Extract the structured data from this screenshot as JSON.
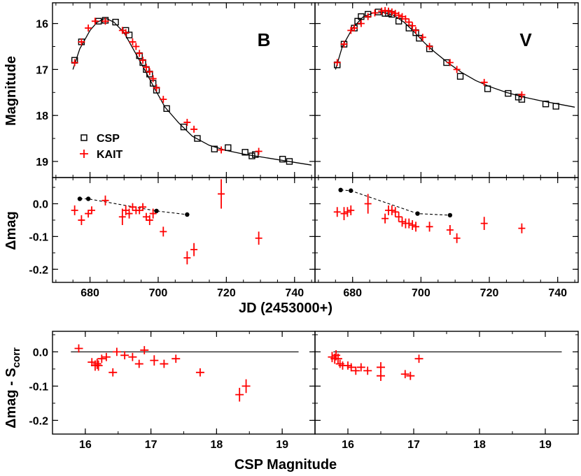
{
  "chart_data": {
    "type": "scatter",
    "title": "",
    "shared_x": {
      "label": "JD (2453000+)",
      "lim": [
        669,
        746
      ],
      "ticks": [
        680,
        700,
        720,
        740
      ],
      "tick_labels": [
        "680",
        "700",
        "720",
        "740"
      ]
    },
    "bottom_x": {
      "label": "CSP Magnitude",
      "lim": [
        15.5,
        19.5
      ],
      "ticks": [
        16,
        17,
        18,
        19
      ],
      "tick_labels": [
        "16",
        "17",
        "18",
        "19"
      ]
    },
    "ylabels": {
      "top": "Magnitude",
      "middle": "Δmag",
      "bottom_main": "Δmag - S",
      "bottom_sub": "corr"
    },
    "ylims": {
      "top": [
        19.35,
        15.55
      ],
      "middle": [
        -0.24,
        0.08
      ],
      "bottom": [
        -0.24,
        0.06
      ]
    },
    "yticks": {
      "top": [
        16,
        17,
        18,
        19
      ],
      "top_labels": [
        "16",
        "17",
        "18",
        "19"
      ],
      "middle": [
        0.0,
        -0.1,
        -0.2
      ],
      "middle_labels": [
        "0.0",
        "-0.1",
        "-0.2"
      ],
      "bottom": [
        0.0,
        -0.1,
        -0.2
      ],
      "bottom_labels": [
        "0.0",
        "-0.1",
        "-0.2"
      ]
    },
    "legend": {
      "placement": "lower-left of B light-curve panel",
      "items": [
        {
          "label": "CSP",
          "marker": "open-square",
          "color": "#000000"
        },
        {
          "label": "KAIT",
          "marker": "plus",
          "color": "#ff0000"
        }
      ]
    },
    "colors": {
      "csp": "#000000",
      "kait": "#ff0000",
      "fit": "#000000"
    },
    "bands": [
      {
        "name": "B",
        "csp": {
          "x": [
            675.5,
            677.5,
            682.5,
            684.5,
            687.5,
            690.5,
            691.5,
            694.5,
            695.5,
            696.5,
            697.5,
            698.5,
            699.5,
            702.5,
            707.5,
            711.5,
            716.5,
            720.5,
            725.5,
            727.5,
            728.5,
            736.5,
            738.5
          ],
          "y": [
            16.8,
            16.4,
            15.95,
            15.93,
            15.97,
            16.15,
            16.25,
            16.7,
            16.85,
            17.0,
            17.1,
            17.3,
            17.45,
            17.85,
            18.25,
            18.5,
            18.73,
            18.7,
            18.8,
            18.88,
            18.85,
            18.95,
            19.0
          ]
        },
        "kait": {
          "x": [
            675.5,
            677.5,
            679.5,
            681.5,
            684.5,
            689.5,
            690.5,
            692.5,
            693.5,
            694.5,
            695.5,
            696.5,
            697.5,
            698.5,
            699.5,
            701.5,
            708.5,
            710.5,
            718.5,
            729.5
          ],
          "y": [
            16.85,
            16.4,
            16.1,
            15.95,
            15.95,
            16.15,
            16.2,
            16.4,
            16.5,
            16.65,
            16.8,
            16.95,
            17.05,
            17.2,
            17.4,
            17.65,
            18.15,
            18.3,
            18.75,
            18.78
          ]
        },
        "fit": {
          "x": [
            675,
            677,
            680,
            682,
            684,
            685,
            687,
            690,
            693,
            696,
            699,
            702,
            706,
            710,
            715,
            720,
            725,
            730,
            735,
            740,
            745
          ],
          "y": [
            17.0,
            16.55,
            16.15,
            15.98,
            15.9,
            15.9,
            15.97,
            16.2,
            16.6,
            17.0,
            17.42,
            17.82,
            18.16,
            18.45,
            18.65,
            18.76,
            18.84,
            18.9,
            18.96,
            19.02,
            19.08
          ]
        },
        "dmag": {
          "csp": {
            "x": [
              677.0,
              679.5,
              699.5,
              708.5
            ],
            "y": [
              0.015,
              0.015,
              -0.022,
              -0.033
            ]
          },
          "kait": {
            "x": [
              675.5,
              677.5,
              679.5,
              680.5,
              684.5,
              689.5,
              690.5,
              691.5,
              692.5,
              693.5,
              694.5,
              695.5,
              696.5,
              697.5,
              698.5,
              701.5,
              708.5,
              710.5,
              718.5,
              729.5
            ],
            "y": [
              -0.02,
              -0.05,
              -0.03,
              -0.02,
              0.01,
              -0.04,
              -0.02,
              -0.03,
              -0.01,
              -0.02,
              -0.02,
              -0.01,
              -0.04,
              -0.05,
              -0.03,
              -0.085,
              -0.165,
              -0.14,
              0.03,
              -0.105
            ],
            "yerr": [
              0.015,
              0.015,
              0.012,
              0.012,
              0.015,
              0.025,
              0.015,
              0.015,
              0.012,
              0.012,
              0.012,
              0.012,
              0.012,
              0.015,
              0.015,
              0.015,
              0.02,
              0.02,
              0.045,
              0.02
            ]
          }
        },
        "residual": {
          "x": [
            15.9,
            16.1,
            16.15,
            16.18,
            16.2,
            16.25,
            16.32,
            16.42,
            16.48,
            16.6,
            16.72,
            16.82,
            16.9,
            17.05,
            17.2,
            17.38,
            17.75,
            18.35,
            18.45
          ],
          "y": [
            0.01,
            -0.03,
            -0.04,
            -0.035,
            -0.04,
            -0.02,
            -0.015,
            -0.06,
            0.0,
            -0.01,
            -0.015,
            -0.035,
            0.005,
            -0.025,
            -0.035,
            -0.02,
            -0.06,
            -0.125,
            -0.1
          ],
          "yerr": [
            0.012,
            0.012,
            0.015,
            0.015,
            0.015,
            0.012,
            0.012,
            0.012,
            0.012,
            0.012,
            0.012,
            0.012,
            0.012,
            0.015,
            0.012,
            0.012,
            0.012,
            0.02,
            0.02
          ]
        }
      },
      {
        "name": "V",
        "csp": {
          "x": [
            675.5,
            677.5,
            680.5,
            681.5,
            682.5,
            684.5,
            687.5,
            689.5,
            690.5,
            691.5,
            693.5,
            696.5,
            698.5,
            699.5,
            702.5,
            707.5,
            711.5,
            719.5,
            725.5,
            728.5,
            729.5,
            736.5,
            739.5
          ],
          "y": [
            16.9,
            16.45,
            16.1,
            15.95,
            15.85,
            15.8,
            15.75,
            15.78,
            15.78,
            15.8,
            15.95,
            16.1,
            16.2,
            16.32,
            16.55,
            16.85,
            17.15,
            17.42,
            17.52,
            17.6,
            17.65,
            17.75,
            17.8
          ]
        },
        "kait": {
          "x": [
            675.5,
            677.5,
            679.5,
            680.5,
            682.5,
            684.5,
            686.5,
            688.5,
            689.5,
            690.5,
            691.5,
            692.5,
            693.5,
            694.5,
            695.5,
            696.5,
            697.5,
            698.5,
            700.5,
            702.5,
            708.5,
            710.5,
            718.5,
            729.5
          ],
          "y": [
            16.85,
            16.45,
            16.15,
            16.1,
            16.0,
            15.85,
            15.77,
            15.73,
            15.72,
            15.73,
            15.75,
            15.78,
            15.82,
            15.85,
            15.9,
            15.97,
            16.05,
            16.15,
            16.3,
            16.5,
            16.85,
            17.0,
            17.28,
            17.55
          ]
        },
        "fit": {
          "x": [
            675,
            677,
            680,
            683,
            686,
            689,
            692,
            695,
            698,
            701,
            704,
            708,
            712,
            716,
            720,
            725,
            730,
            735,
            740,
            745
          ],
          "y": [
            17.0,
            16.5,
            16.1,
            15.86,
            15.77,
            15.76,
            15.82,
            15.97,
            16.18,
            16.42,
            16.62,
            16.86,
            17.07,
            17.24,
            17.37,
            17.5,
            17.6,
            17.68,
            17.75,
            17.82
          ]
        },
        "dmag": {
          "csp": {
            "x": [
              676.5,
              679.5,
              699.0,
              708.5
            ],
            "y": [
              0.042,
              0.04,
              -0.03,
              -0.035
            ]
          },
          "kait": {
            "x": [
              675.5,
              677.5,
              678.5,
              679.5,
              684.5,
              689.5,
              690.5,
              691.5,
              692.5,
              693.5,
              694.5,
              695.5,
              696.5,
              697.5,
              698.5,
              702.5,
              708.5,
              710.5,
              718.5,
              729.5
            ],
            "y": [
              -0.025,
              -0.03,
              -0.025,
              -0.02,
              0.0,
              -0.045,
              -0.02,
              -0.02,
              -0.025,
              -0.04,
              -0.055,
              -0.06,
              -0.06,
              -0.065,
              -0.07,
              -0.07,
              -0.08,
              -0.105,
              -0.06,
              -0.075
            ],
            "yerr": [
              0.015,
              0.02,
              0.015,
              0.015,
              0.03,
              0.015,
              0.015,
              0.015,
              0.015,
              0.015,
              0.015,
              0.015,
              0.015,
              0.015,
              0.015,
              0.015,
              0.015,
              0.015,
              0.02,
              0.015
            ]
          }
        },
        "residual": {
          "x": [
            15.76,
            15.8,
            15.82,
            15.85,
            15.88,
            15.92,
            16.0,
            16.05,
            16.12,
            16.2,
            16.3,
            16.5,
            16.5,
            16.87,
            16.95,
            17.08
          ],
          "y": [
            -0.015,
            -0.02,
            -0.01,
            -0.02,
            -0.035,
            -0.04,
            -0.04,
            -0.045,
            -0.055,
            -0.045,
            -0.055,
            -0.045,
            -0.07,
            -0.065,
            -0.07,
            -0.02
          ],
          "yerr": [
            0.015,
            0.015,
            0.015,
            0.015,
            0.012,
            0.012,
            0.012,
            0.012,
            0.012,
            0.012,
            0.012,
            0.015,
            0.015,
            0.012,
            0.012,
            0.012
          ]
        }
      }
    ]
  }
}
